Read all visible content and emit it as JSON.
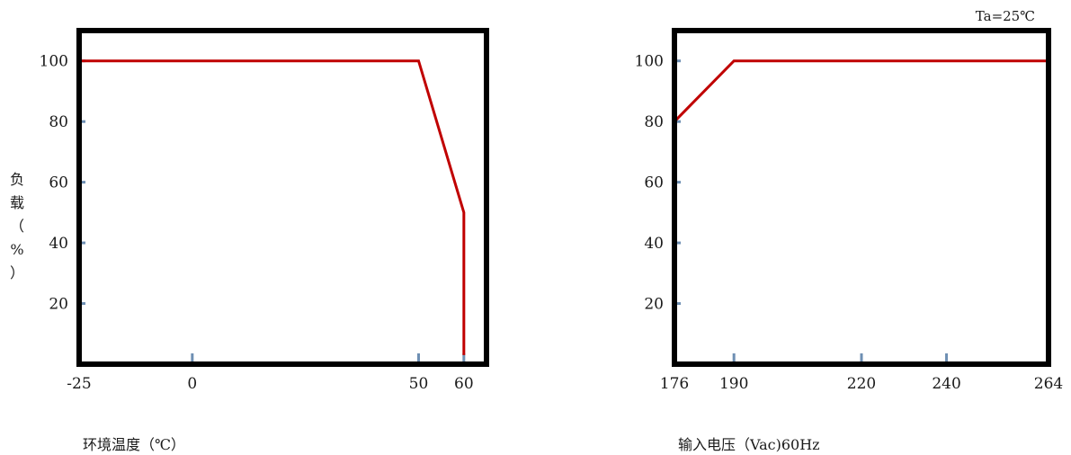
{
  "chart_data": [
    {
      "type": "line",
      "ylabel": "负载（%）",
      "xlabel": "环境温度（℃）",
      "x_ticks": [
        -25,
        0,
        50,
        60
      ],
      "y_ticks": [
        20,
        40,
        60,
        80,
        100
      ],
      "xlim": [
        -25,
        65
      ],
      "ylim": [
        0,
        110
      ],
      "grid": false,
      "colors": {
        "line": "#c00000",
        "tick": "#6e8fb3",
        "frame": "#000000"
      },
      "series": [
        {
          "x": [
            -25,
            50,
            60,
            60
          ],
          "y": [
            100,
            100,
            50,
            3
          ]
        }
      ]
    },
    {
      "type": "line",
      "xlabel": "输入电压（Vac)60Hz",
      "annotation": "Ta=25℃",
      "x_ticks": [
        176,
        190,
        220,
        240,
        264
      ],
      "y_ticks": [
        20,
        40,
        60,
        80,
        100
      ],
      "xlim": [
        176,
        264
      ],
      "ylim": [
        0,
        110
      ],
      "grid": false,
      "colors": {
        "line": "#c00000",
        "tick": "#6e8fb3",
        "frame": "#000000"
      },
      "series": [
        {
          "x": [
            176,
            190,
            264
          ],
          "y": [
            80,
            100,
            100
          ]
        }
      ]
    }
  ]
}
